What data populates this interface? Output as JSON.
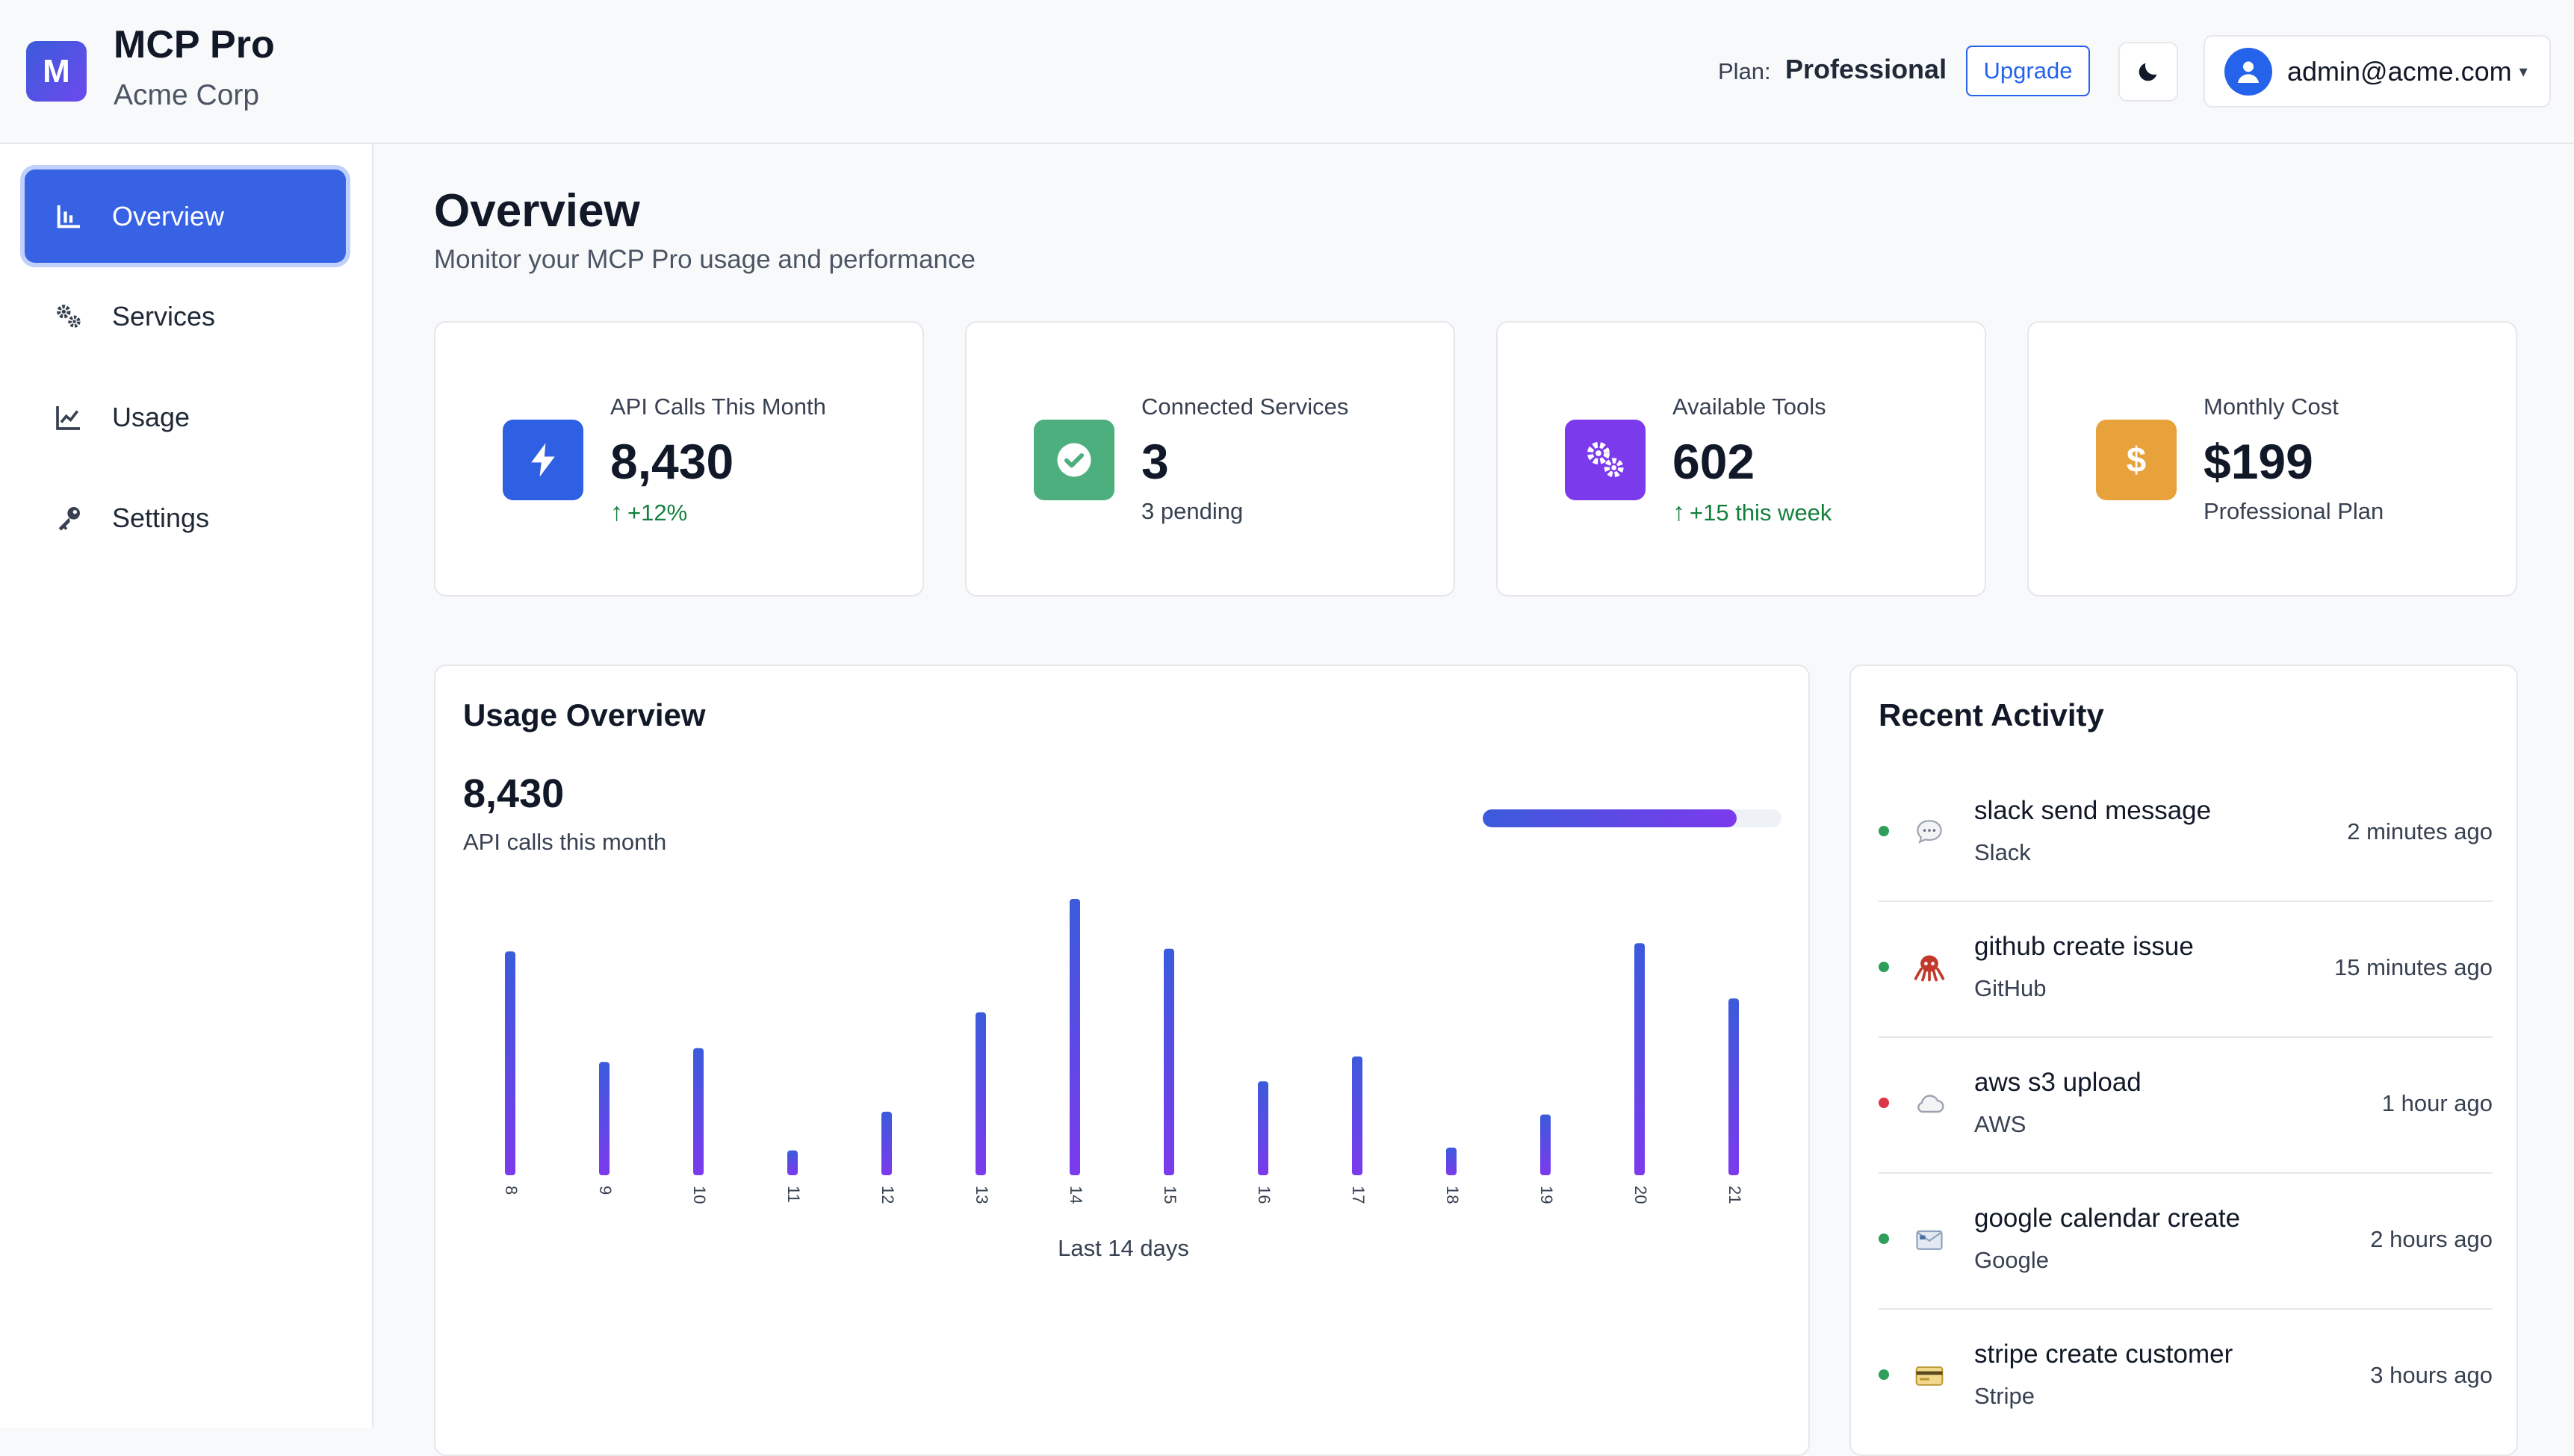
{
  "app": {
    "logo_letter": "M",
    "title": "MCP Pro",
    "org": "Acme Corp"
  },
  "header": {
    "plan_label": "Plan:",
    "plan_value": "Professional",
    "upgrade_label": "Upgrade",
    "theme_icon": "moon-icon",
    "user_email": "admin@acme.com",
    "caret": "▾"
  },
  "sidebar": {
    "items": [
      {
        "label": "Overview",
        "icon": "bar-chart-icon",
        "active": true
      },
      {
        "label": "Services",
        "icon": "gears-icon",
        "active": false
      },
      {
        "label": "Usage",
        "icon": "line-chart-icon",
        "active": false
      },
      {
        "label": "Settings",
        "icon": "key-icon",
        "active": false
      }
    ]
  },
  "page": {
    "title": "Overview",
    "subtitle": "Monitor your MCP Pro usage and performance"
  },
  "stats": [
    {
      "label": "API Calls This Month",
      "value": "8,430",
      "foot": "+12%",
      "trend": "up",
      "icon": "bolt-icon",
      "color": "#2f5fe3"
    },
    {
      "label": "Connected Services",
      "value": "3",
      "foot": "3 pending",
      "trend": "none",
      "icon": "check-circle-icon",
      "color": "#4caf7d"
    },
    {
      "label": "Available Tools",
      "value": "602",
      "foot": "+15 this week",
      "trend": "up",
      "icon": "gears-icon",
      "color": "#7c3aed"
    },
    {
      "label": "Monthly Cost",
      "value": "$199",
      "foot": "Professional Plan",
      "trend": "none",
      "icon": "dollar-icon",
      "color": "#e8a23b"
    }
  ],
  "usage": {
    "title": "Usage Overview",
    "total": "8,430",
    "total_label": "API calls this month",
    "progress": 0.85,
    "caption": "Last 14 days"
  },
  "chart_data": {
    "type": "bar",
    "title": "Usage Overview",
    "xlabel": "Last 14 days",
    "ylabel": "",
    "categories": [
      "8",
      "9",
      "10",
      "11",
      "12",
      "13",
      "14",
      "15",
      "16",
      "17",
      "18",
      "19",
      "20",
      "21"
    ],
    "values": [
      81,
      41,
      46,
      9,
      23,
      59,
      100,
      82,
      34,
      43,
      10,
      22,
      84,
      64
    ],
    "ylim": [
      0,
      100
    ]
  },
  "activity": {
    "title": "Recent Activity",
    "items": [
      {
        "title": "slack send message",
        "service": "Slack",
        "time": "2 minutes ago",
        "status": "#2e9e5b",
        "icon": "speech-bubble-icon",
        "glyph": "💬"
      },
      {
        "title": "github create issue",
        "service": "GitHub",
        "time": "15 minutes ago",
        "status": "#2e9e5b",
        "icon": "octopus-icon",
        "glyph": "🐙"
      },
      {
        "title": "aws s3 upload",
        "service": "AWS",
        "time": "1 hour ago",
        "status": "#dc3545",
        "icon": "cloud-icon",
        "glyph": "☁"
      },
      {
        "title": "google calendar create",
        "service": "Google",
        "time": "2 hours ago",
        "status": "#2e9e5b",
        "icon": "envelope-icon",
        "glyph": "📧"
      },
      {
        "title": "stripe create customer",
        "service": "Stripe",
        "time": "3 hours ago",
        "status": "#2e9e5b",
        "icon": "credit-card-icon",
        "glyph": "💳"
      }
    ]
  }
}
